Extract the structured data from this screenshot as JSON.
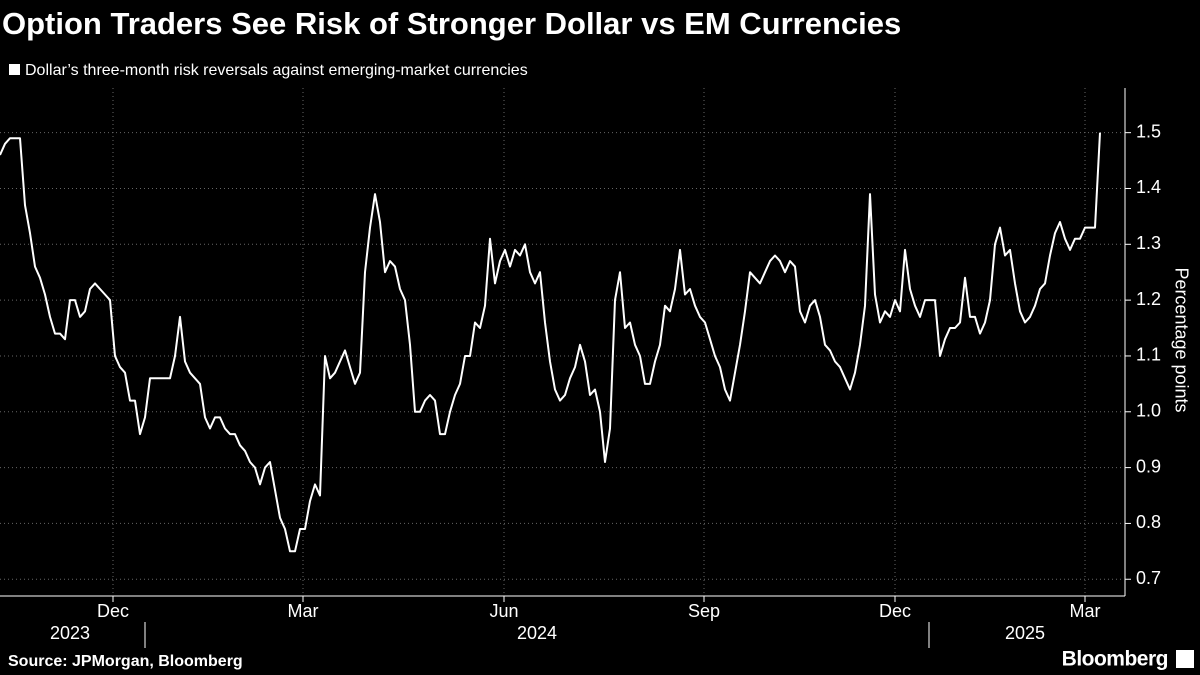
{
  "chart_data": {
    "type": "line",
    "title": "Option Traders See Risk of Stronger Dollar vs EM Currencies",
    "series": [
      {
        "name": "Dollar’s three-month risk reversals against emerging-market currencies",
        "color": "#ffffff",
        "values": [
          1.46,
          1.48,
          1.49,
          1.49,
          1.49,
          1.37,
          1.32,
          1.26,
          1.24,
          1.21,
          1.17,
          1.14,
          1.14,
          1.13,
          1.2,
          1.2,
          1.17,
          1.18,
          1.22,
          1.23,
          1.22,
          1.21,
          1.2,
          1.1,
          1.08,
          1.07,
          1.02,
          1.02,
          0.96,
          0.99,
          1.06,
          1.06,
          1.06,
          1.06,
          1.06,
          1.1,
          1.17,
          1.09,
          1.07,
          1.06,
          1.05,
          0.99,
          0.97,
          0.99,
          0.99,
          0.97,
          0.96,
          0.96,
          0.94,
          0.93,
          0.91,
          0.9,
          0.87,
          0.9,
          0.91,
          0.86,
          0.81,
          0.79,
          0.75,
          0.75,
          0.79,
          0.79,
          0.84,
          0.87,
          0.85,
          1.1,
          1.06,
          1.07,
          1.09,
          1.11,
          1.08,
          1.05,
          1.07,
          1.25,
          1.33,
          1.39,
          1.34,
          1.25,
          1.27,
          1.26,
          1.22,
          1.2,
          1.12,
          1.0,
          1.0,
          1.02,
          1.03,
          1.02,
          0.96,
          0.96,
          1.0,
          1.03,
          1.05,
          1.1,
          1.1,
          1.16,
          1.15,
          1.19,
          1.31,
          1.23,
          1.27,
          1.29,
          1.26,
          1.29,
          1.28,
          1.3,
          1.25,
          1.23,
          1.25,
          1.16,
          1.09,
          1.04,
          1.02,
          1.03,
          1.06,
          1.08,
          1.12,
          1.09,
          1.03,
          1.04,
          1.0,
          0.91,
          0.97,
          1.2,
          1.25,
          1.15,
          1.16,
          1.12,
          1.1,
          1.05,
          1.05,
          1.09,
          1.12,
          1.19,
          1.18,
          1.22,
          1.29,
          1.21,
          1.22,
          1.19,
          1.17,
          1.16,
          1.13,
          1.1,
          1.08,
          1.04,
          1.02,
          1.07,
          1.12,
          1.18,
          1.25,
          1.24,
          1.23,
          1.25,
          1.27,
          1.28,
          1.27,
          1.25,
          1.27,
          1.26,
          1.18,
          1.16,
          1.19,
          1.2,
          1.17,
          1.12,
          1.11,
          1.09,
          1.08,
          1.06,
          1.04,
          1.07,
          1.12,
          1.19,
          1.39,
          1.21,
          1.16,
          1.18,
          1.17,
          1.2,
          1.18,
          1.29,
          1.22,
          1.19,
          1.17,
          1.2,
          1.2,
          1.2,
          1.1,
          1.13,
          1.15,
          1.15,
          1.16,
          1.24,
          1.17,
          1.17,
          1.14,
          1.16,
          1.2,
          1.3,
          1.33,
          1.28,
          1.29,
          1.23,
          1.18,
          1.16,
          1.17,
          1.19,
          1.22,
          1.23,
          1.28,
          1.32,
          1.34,
          1.31,
          1.29,
          1.31,
          1.31,
          1.33,
          1.33,
          1.33,
          1.5
        ]
      }
    ],
    "xlim": [
      0,
      224.4
    ],
    "xticks": [
      {
        "value": 22.6,
        "label": "Dec"
      },
      {
        "value": 60.6,
        "label": "Mar"
      },
      {
        "value": 100.8,
        "label": "Jun"
      },
      {
        "value": 140.8,
        "label": "Sep"
      },
      {
        "value": 179,
        "label": "Dec"
      },
      {
        "value": 217,
        "label": "Mar"
      }
    ],
    "x_year_labels": [
      {
        "value": 14,
        "label": "2023"
      },
      {
        "value": 107.4,
        "label": "2024"
      },
      {
        "value": 205,
        "label": "2025"
      }
    ],
    "ylim": [
      0.67,
      1.58
    ],
    "yticks": [
      0.7,
      0.8,
      0.9,
      {
        "value": 1,
        "label": "1.0"
      },
      1.1,
      1.2,
      1.3,
      1.4,
      1.5
    ],
    "ylabel": "Percentage points",
    "grid": true,
    "source": "Source: JPMorgan, Bloomberg",
    "brand": "Bloomberg"
  }
}
